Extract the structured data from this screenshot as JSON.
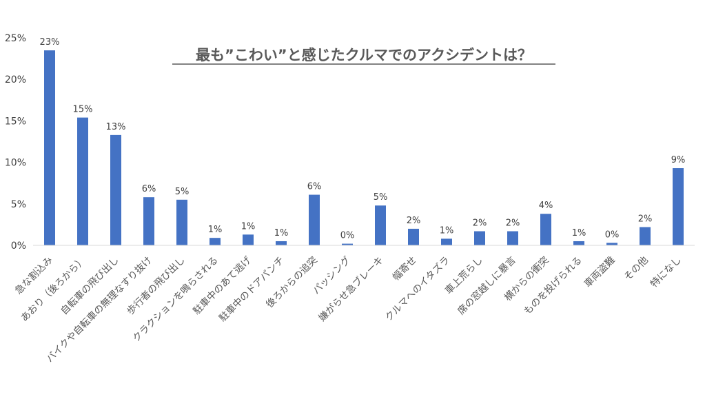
{
  "chart_data": {
    "type": "bar",
    "title": "最も”こわい”と感じたクルマでのアクシデントは？",
    "xlabel": "",
    "ylabel": "",
    "ylim": [
      0,
      25
    ],
    "yticks": [
      0,
      5,
      10,
      15,
      20,
      25
    ],
    "ytick_labels": [
      "0%",
      "5%",
      "10%",
      "15%",
      "20%",
      "25%"
    ],
    "grid": false,
    "bar_color": "#4472C4",
    "categories": [
      "急な割込み",
      "あおり（後ろから）",
      "自転車の飛び出し",
      "バイクや自転車の無理なすり抜け",
      "歩行者の飛び出し",
      "クラクションを鳴らされる",
      "駐車中のあて逃げ",
      "駐車中のドアパンチ",
      "後ろからの追突",
      "パッシング",
      "嫌がらせ急ブレーキ",
      "幅寄せ",
      "クルマへのイタズラ",
      "車上荒らし",
      "席の窓越しに暴言",
      "横からの衝突",
      "ものを投げられる",
      "車両盗難",
      "その他",
      "特になし"
    ],
    "values": [
      23.5,
      15.4,
      13.3,
      5.8,
      5.5,
      0.9,
      1.3,
      0.5,
      6.1,
      0.2,
      4.8,
      2.0,
      0.8,
      1.7,
      1.7,
      3.8,
      0.5,
      0.3,
      2.2,
      9.3
    ],
    "value_labels": [
      "23%",
      "15%",
      "13%",
      "6%",
      "5%",
      "1%",
      "1%",
      "1%",
      "6%",
      "0%",
      "5%",
      "2%",
      "1%",
      "2%",
      "2%",
      "4%",
      "1%",
      "0%",
      "2%",
      "9%"
    ]
  }
}
